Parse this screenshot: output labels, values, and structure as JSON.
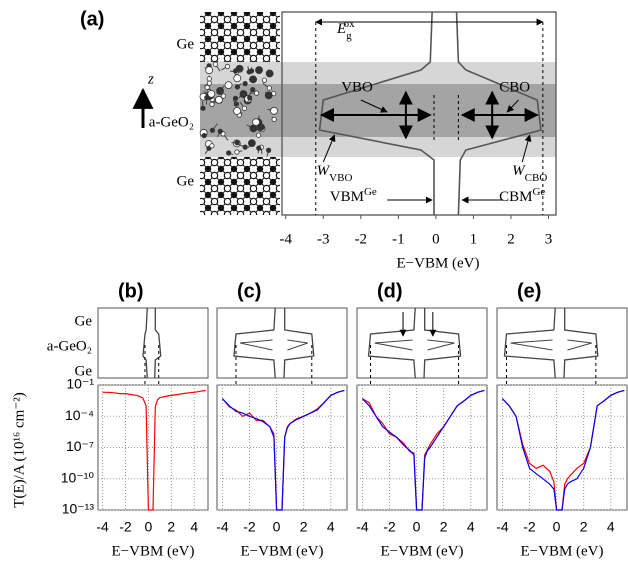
{
  "panel_a": {
    "label": "(a)",
    "layers": [
      "Ge",
      "a-GeO₂",
      "Ge"
    ],
    "axis_z": "z",
    "gap": {
      "base": "E",
      "sub": "g",
      "sup": "ox"
    },
    "vbo": "VBO",
    "cbo": "CBO",
    "w_vbo": {
      "base": "W",
      "sub": "VBO"
    },
    "w_cbo": {
      "base": "W",
      "sub": "CBO"
    },
    "vbm": {
      "base": "VBM",
      "sup": "Ge"
    },
    "cbm": {
      "base": "CBM",
      "sup": "Ge"
    },
    "xlabel": "E−VBM (eV)",
    "xlim": [
      -4.1,
      3.2
    ],
    "xticks": [
      -4,
      -3,
      -2,
      -1,
      0,
      1,
      2,
      3
    ]
  },
  "row_labels": [
    "Ge",
    "a-GeO₂",
    "Ge"
  ],
  "ylabel": "T(E)/A (10¹⁶ cm⁻²)",
  "chart_data": [
    {
      "type": "line",
      "label": "(b)",
      "xlabel": "E−VBM (eV)",
      "log_y": true,
      "grid": true,
      "xlim": [
        -4.4,
        5.2
      ],
      "xticks": [
        -4,
        -2,
        0,
        2,
        4
      ],
      "ylim": [
        1e-13,
        0.1
      ],
      "yticks": [
        {
          "value": 0.1,
          "label": "10⁻¹"
        },
        {
          "value": 0.0001,
          "label": "10⁻⁴"
        },
        {
          "value": 1e-07,
          "label": "10⁻⁷"
        },
        {
          "value": 1e-10,
          "label": "10⁻¹⁰"
        },
        {
          "value": 1e-13,
          "label": "10⁻¹³"
        }
      ],
      "x": [
        -4,
        -3.5,
        -3,
        -2.5,
        -2,
        -1.5,
        -1,
        -0.5,
        -0.2,
        0,
        0.1,
        0.2,
        0.4,
        0.6,
        0.8,
        1,
        1.5,
        2,
        2.5,
        3,
        3.5,
        4,
        4.5,
        5
      ],
      "series": [
        {
          "color": "#ff0000",
          "values": [
            0.02,
            0.02,
            0.018,
            0.015,
            0.015,
            0.012,
            0.01,
            0.006,
            0.001,
            1e-13,
            1e-13,
            1e-13,
            1e-13,
            0.0008,
            0.004,
            0.006,
            0.008,
            0.01,
            0.012,
            0.015,
            0.018,
            0.02,
            0.025,
            0.03
          ]
        }
      ]
    },
    {
      "type": "line",
      "label": "(c)",
      "xlabel": "E−VBM (eV)",
      "log_y": true,
      "grid": true,
      "xlim": [
        -4.4,
        5.2
      ],
      "xticks": [
        -4,
        -2,
        0,
        2,
        4
      ],
      "ylim": [
        1e-13,
        0.1
      ],
      "yticks": [
        0.1,
        0.0001,
        1e-07,
        1e-10,
        1e-13
      ],
      "x": [
        -4,
        -3.5,
        -3,
        -2.5,
        -2,
        -1.5,
        -1,
        -0.5,
        -0.2,
        0,
        0.1,
        0.2,
        0.4,
        0.6,
        0.8,
        1,
        1.5,
        2,
        2.5,
        3,
        3.5,
        4,
        4.5,
        5
      ],
      "series": [
        {
          "color": "#ff0000",
          "values": [
            0.005,
            0.0008,
            0.0004,
            0.0001,
            0.0002,
            4e-05,
            4e-05,
            1e-05,
            2e-06,
            1e-13,
            1e-13,
            1e-13,
            1e-13,
            1e-06,
            1e-05,
            2e-05,
            6e-05,
            0.0001,
            0.0002,
            0.0005,
            0.002,
            0.01,
            0.02,
            0.03
          ]
        },
        {
          "color": "#0000ff",
          "values": [
            0.005,
            0.001,
            0.0003,
            0.0002,
            0.0001,
            6e-05,
            3e-05,
            1e-05,
            1e-06,
            1e-13,
            1e-13,
            1e-13,
            1e-13,
            1e-06,
            8e-06,
            2e-05,
            5e-05,
            0.0001,
            0.0002,
            0.0004,
            0.002,
            0.01,
            0.02,
            0.03
          ]
        }
      ]
    },
    {
      "type": "line",
      "label": "(d)",
      "xlabel": "E−VBM (eV)",
      "log_y": true,
      "grid": true,
      "xlim": [
        -4.4,
        5.2
      ],
      "xticks": [
        -4,
        -2,
        0,
        2,
        4
      ],
      "ylim": [
        1e-13,
        0.1
      ],
      "yticks": [
        0.1,
        0.0001,
        1e-07,
        1e-10,
        1e-13
      ],
      "x": [
        -4,
        -3.5,
        -3,
        -2.5,
        -2,
        -1.5,
        -1,
        -0.5,
        -0.2,
        0,
        0.1,
        0.2,
        0.4,
        0.6,
        0.8,
        1,
        1.5,
        2,
        2.5,
        3,
        3.5,
        4,
        4.5,
        5
      ],
      "series": [
        {
          "color": "#ff0000",
          "values": [
            0.005,
            0.002,
            0.0001,
            2e-05,
            2e-06,
            1e-06,
            3e-07,
            4e-08,
            3e-08,
            1e-13,
            1e-13,
            1e-13,
            1e-13,
            2e-08,
            6e-08,
            2e-07,
            2e-06,
            1e-05,
            0.0001,
            0.001,
            0.003,
            0.01,
            0.02,
            0.03
          ]
        },
        {
          "color": "#0000ff",
          "values": [
            0.005,
            0.001,
            0.0001,
            1e-05,
            3e-06,
            1e-06,
            2e-07,
            5e-08,
            2e-08,
            1e-13,
            1e-13,
            1e-13,
            1e-13,
            1e-08,
            5e-08,
            1e-07,
            1e-06,
            1e-05,
            0.0001,
            0.001,
            0.003,
            0.01,
            0.02,
            0.03
          ]
        }
      ]
    },
    {
      "type": "line",
      "label": "(e)",
      "xlabel": "E−VBM (eV)",
      "log_y": true,
      "grid": true,
      "xlim": [
        -4.4,
        5.2
      ],
      "xticks": [
        -4,
        -2,
        0,
        2,
        4
      ],
      "ylim": [
        1e-13,
        0.1
      ],
      "yticks": [
        0.1,
        0.0001,
        1e-07,
        1e-10,
        1e-13
      ],
      "x": [
        -4,
        -3.5,
        -3,
        -2.5,
        -2,
        -1.5,
        -1,
        -0.5,
        -0.2,
        0,
        0.1,
        0.2,
        0.4,
        0.6,
        0.8,
        1,
        1.5,
        2,
        2.5,
        3,
        3.5,
        4,
        4.5,
        5
      ],
      "series": [
        {
          "color": "#ff0000",
          "values": [
            0.005,
            0.001,
            0.0001,
            2e-07,
            3e-09,
            1e-09,
            2e-09,
            5e-10,
            5e-11,
            1e-13,
            1e-13,
            1e-13,
            1e-13,
            3e-11,
            1e-10,
            2e-10,
            1e-09,
            3e-09,
            1e-07,
            0.001,
            0.003,
            0.01,
            0.02,
            0.03
          ]
        },
        {
          "color": "#0000ff",
          "values": [
            0.005,
            0.001,
            0.0001,
            1e-07,
            1e-09,
            3e-10,
            1e-10,
            3e-11,
            1e-11,
            1e-13,
            1e-13,
            1e-13,
            1e-13,
            1e-11,
            3e-11,
            5e-11,
            1e-10,
            1e-09,
            1e-07,
            0.001,
            0.003,
            0.01,
            0.02,
            0.03
          ]
        }
      ]
    }
  ]
}
